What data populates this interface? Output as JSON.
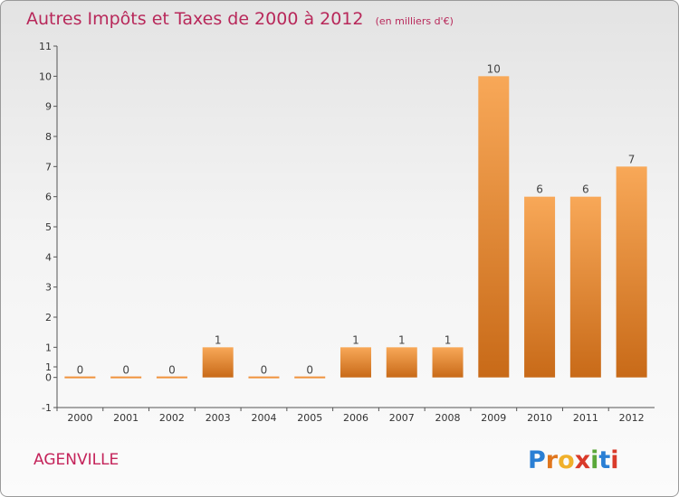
{
  "chart_data": {
    "type": "bar",
    "title": "Autres Impôts et Taxes de 2000 à 2012",
    "subtitle": "(en milliers d'€)",
    "categories": [
      "2000",
      "2001",
      "2002",
      "2003",
      "2004",
      "2005",
      "2006",
      "2007",
      "2008",
      "2009",
      "2010",
      "2011",
      "2012"
    ],
    "values": [
      0,
      0,
      0,
      1,
      0,
      0,
      1,
      1,
      1,
      10,
      6,
      6,
      7
    ],
    "data_labels": [
      "0",
      "0",
      "0",
      "1",
      "0",
      "0",
      "1",
      "1",
      "1",
      "10",
      "6",
      "6",
      "7"
    ],
    "ylim": [
      -1,
      11
    ],
    "yticks": [
      "-1",
      "0",
      "1",
      "1",
      "2",
      "3",
      "4",
      "5",
      "6",
      "7",
      "8",
      "9",
      "10",
      "11"
    ],
    "ytick_values": [
      -1,
      0,
      1,
      1,
      2,
      3,
      4,
      5,
      6,
      7,
      8,
      9,
      10,
      11
    ],
    "grid": false,
    "bar_color": "#f0923c"
  },
  "footer": {
    "commune": "AGENVILLE",
    "logo": "Proxiti"
  }
}
